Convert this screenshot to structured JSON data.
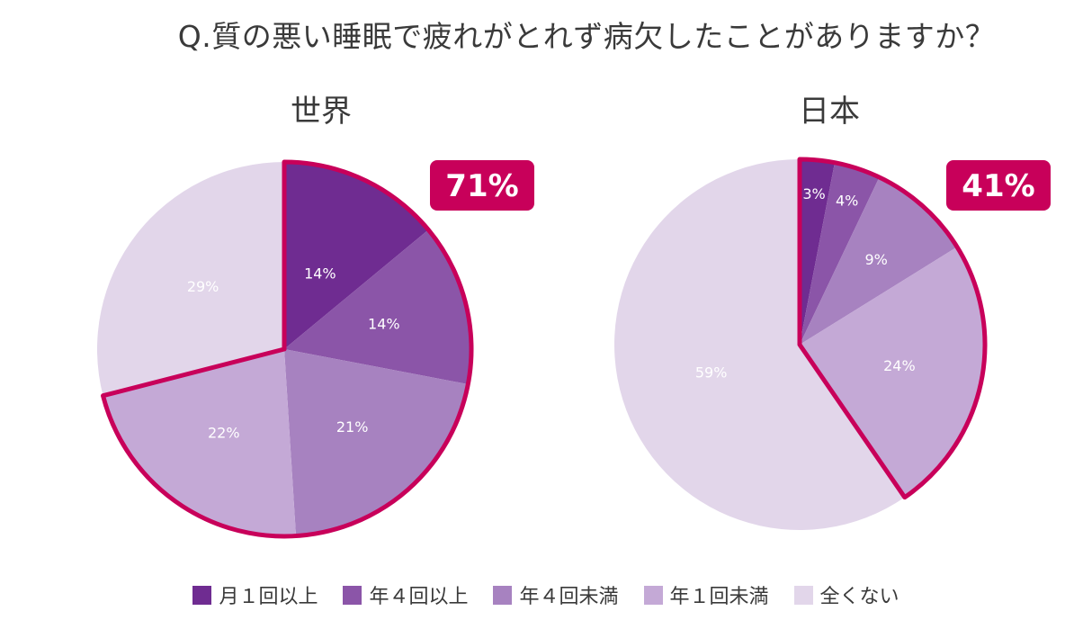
{
  "title": "Q.質の悪い睡眠で疲れがとれず病欠したことがありますか？",
  "colors": {
    "month1": "#6f2c91",
    "year4plus": "#8b55a8",
    "year4less": "#a782c0",
    "year1less": "#c4a9d6",
    "never": "#e2d6ea",
    "highlight": "#c8005a"
  },
  "chart_data": [
    {
      "type": "pie",
      "title": "世界",
      "categories": [
        "月１回以上",
        "年４回以上",
        "年４回未満",
        "年１回未満",
        "全くない"
      ],
      "values": [
        14,
        14,
        21,
        22,
        29
      ],
      "labels": [
        "14%",
        "14%",
        "21%",
        "22%",
        "29%"
      ],
      "highlight_total": "71%"
    },
    {
      "type": "pie",
      "title": "日本",
      "categories": [
        "月１回以上",
        "年４回以上",
        "年４回未満",
        "年１回未満",
        "全くない"
      ],
      "values": [
        3,
        4,
        9,
        24,
        59
      ],
      "labels": [
        "3%",
        "4%",
        "9%",
        "24%",
        "59%"
      ],
      "highlight_total": "41%"
    }
  ],
  "legend": [
    {
      "label": "月１回以上",
      "color": "#6f2c91"
    },
    {
      "label": "年４回以上",
      "color": "#8b55a8"
    },
    {
      "label": "年４回未満",
      "color": "#a782c0"
    },
    {
      "label": "年１回未満",
      "color": "#c4a9d6"
    },
    {
      "label": "全くない",
      "color": "#e2d6ea"
    }
  ]
}
